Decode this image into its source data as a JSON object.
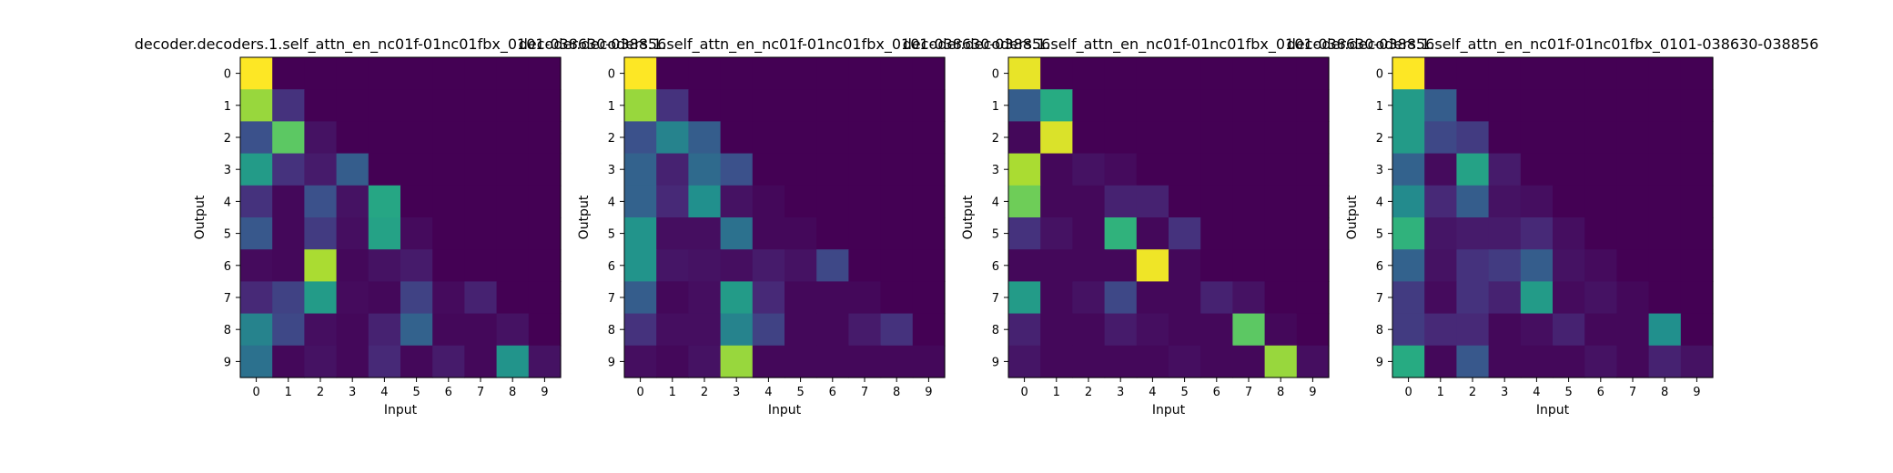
{
  "colormap": "viridis",
  "chart_data": [
    {
      "type": "heatmap",
      "title": "decoder.decoders.1.self_attn_en_nc01f-01nc01fbx_0101-038630-038856",
      "xlabel": "Input",
      "ylabel": "Output",
      "x_ticks": [
        "0",
        "1",
        "2",
        "3",
        "4",
        "5",
        "6",
        "7",
        "8",
        "9"
      ],
      "y_ticks": [
        "0",
        "1",
        "2",
        "3",
        "4",
        "5",
        "6",
        "7",
        "8",
        "9"
      ],
      "values": [
        [
          1.0,
          0,
          0,
          0,
          0,
          0,
          0,
          0,
          0,
          0
        ],
        [
          0.85,
          0.15,
          0,
          0,
          0,
          0,
          0,
          0,
          0,
          0
        ],
        [
          0.25,
          0.75,
          0.05,
          0,
          0,
          0,
          0,
          0,
          0,
          0
        ],
        [
          0.55,
          0.15,
          0.08,
          0.3,
          0,
          0,
          0,
          0,
          0,
          0
        ],
        [
          0.15,
          0.02,
          0.25,
          0.05,
          0.6,
          0,
          0,
          0,
          0,
          0
        ],
        [
          0.28,
          0.02,
          0.18,
          0.04,
          0.58,
          0.03,
          0,
          0,
          0,
          0
        ],
        [
          0.03,
          0.02,
          0.88,
          0.02,
          0.05,
          0.08,
          0,
          0,
          0,
          0
        ],
        [
          0.12,
          0.2,
          0.55,
          0.03,
          0.02,
          0.2,
          0.03,
          0.1,
          0,
          0
        ],
        [
          0.45,
          0.22,
          0.04,
          0.02,
          0.1,
          0.32,
          0.02,
          0.02,
          0.05,
          0
        ],
        [
          0.38,
          0.02,
          0.05,
          0.02,
          0.12,
          0.02,
          0.08,
          0.02,
          0.52,
          0.05
        ]
      ]
    },
    {
      "type": "heatmap",
      "title": "decoder.decoders.1.self_attn_en_nc01f-01nc01fbx_0101-038630-038856",
      "xlabel": "Input",
      "ylabel": "Output",
      "x_ticks": [
        "0",
        "1",
        "2",
        "3",
        "4",
        "5",
        "6",
        "7",
        "8",
        "9"
      ],
      "y_ticks": [
        "0",
        "1",
        "2",
        "3",
        "4",
        "5",
        "6",
        "7",
        "8",
        "9"
      ],
      "values": [
        [
          1.0,
          0,
          0,
          0,
          0,
          0,
          0,
          0,
          0,
          0
        ],
        [
          0.85,
          0.15,
          0,
          0,
          0,
          0,
          0,
          0,
          0,
          0
        ],
        [
          0.25,
          0.45,
          0.3,
          0,
          0,
          0,
          0,
          0,
          0,
          0
        ],
        [
          0.32,
          0.1,
          0.35,
          0.25,
          0,
          0,
          0,
          0,
          0,
          0
        ],
        [
          0.32,
          0.12,
          0.5,
          0.05,
          0.02,
          0,
          0,
          0,
          0,
          0
        ],
        [
          0.52,
          0.04,
          0.04,
          0.38,
          0.02,
          0.02,
          0,
          0,
          0,
          0
        ],
        [
          0.52,
          0.06,
          0.05,
          0.04,
          0.08,
          0.05,
          0.22,
          0,
          0,
          0
        ],
        [
          0.3,
          0.02,
          0.04,
          0.55,
          0.12,
          0.02,
          0.02,
          0.02,
          0,
          0
        ],
        [
          0.15,
          0.04,
          0.04,
          0.45,
          0.2,
          0.02,
          0.02,
          0.08,
          0.15,
          0
        ],
        [
          0.04,
          0.02,
          0.05,
          0.85,
          0.02,
          0.02,
          0.02,
          0.02,
          0.02,
          0.02
        ]
      ]
    },
    {
      "type": "heatmap",
      "title": "decoder.decoders.1.self_attn_en_nc01f-01nc01fbx_0101-038630-038856",
      "xlabel": "Input",
      "ylabel": "Output",
      "x_ticks": [
        "0",
        "1",
        "2",
        "3",
        "4",
        "5",
        "6",
        "7",
        "8",
        "9"
      ],
      "y_ticks": [
        "0",
        "1",
        "2",
        "3",
        "4",
        "5",
        "6",
        "7",
        "8",
        "9"
      ],
      "values": [
        [
          0.97,
          0,
          0,
          0,
          0,
          0,
          0,
          0,
          0,
          0
        ],
        [
          0.3,
          0.62,
          0,
          0,
          0,
          0,
          0,
          0,
          0,
          0
        ],
        [
          0.02,
          0.95,
          0,
          0,
          0,
          0,
          0,
          0,
          0,
          0
        ],
        [
          0.88,
          0.02,
          0.05,
          0.03,
          0,
          0,
          0,
          0,
          0,
          0
        ],
        [
          0.78,
          0.02,
          0.02,
          0.1,
          0.1,
          0,
          0,
          0,
          0,
          0
        ],
        [
          0.15,
          0.05,
          0.02,
          0.65,
          0.02,
          0.15,
          0,
          0,
          0,
          0
        ],
        [
          0.02,
          0.02,
          0.02,
          0.02,
          0.98,
          0.02,
          0,
          0,
          0,
          0
        ],
        [
          0.55,
          0.02,
          0.05,
          0.22,
          0.02,
          0.02,
          0.1,
          0.05,
          0,
          0
        ],
        [
          0.1,
          0.02,
          0.02,
          0.08,
          0.04,
          0.02,
          0.02,
          0.75,
          0.02,
          0
        ],
        [
          0.06,
          0.02,
          0.02,
          0.02,
          0.02,
          0.04,
          0.02,
          0.02,
          0.85,
          0.04
        ]
      ]
    },
    {
      "type": "heatmap",
      "title": "decoder.decoders.1.self_attn_en_nc01f-01nc01fbx_0101-038630-038856",
      "xlabel": "Input",
      "ylabel": "Output",
      "x_ticks": [
        "0",
        "1",
        "2",
        "3",
        "4",
        "5",
        "6",
        "7",
        "8",
        "9"
      ],
      "y_ticks": [
        "0",
        "1",
        "2",
        "3",
        "4",
        "5",
        "6",
        "7",
        "8",
        "9"
      ],
      "values": [
        [
          1.0,
          0,
          0,
          0,
          0,
          0,
          0,
          0,
          0,
          0
        ],
        [
          0.55,
          0.3,
          0,
          0,
          0,
          0,
          0,
          0,
          0,
          0
        ],
        [
          0.55,
          0.22,
          0.18,
          0,
          0,
          0,
          0,
          0,
          0,
          0
        ],
        [
          0.32,
          0.03,
          0.58,
          0.08,
          0,
          0,
          0,
          0,
          0,
          0
        ],
        [
          0.48,
          0.12,
          0.3,
          0.05,
          0.04,
          0,
          0,
          0,
          0,
          0
        ],
        [
          0.65,
          0.06,
          0.08,
          0.08,
          0.12,
          0.04,
          0,
          0,
          0,
          0
        ],
        [
          0.32,
          0.05,
          0.15,
          0.18,
          0.3,
          0.05,
          0.03,
          0,
          0,
          0
        ],
        [
          0.18,
          0.03,
          0.15,
          0.1,
          0.55,
          0.03,
          0.05,
          0.02,
          0,
          0
        ],
        [
          0.18,
          0.12,
          0.12,
          0.02,
          0.04,
          0.1,
          0.02,
          0.02,
          0.5,
          0
        ],
        [
          0.62,
          0.02,
          0.28,
          0.02,
          0.02,
          0.02,
          0.05,
          0.02,
          0.1,
          0.05
        ]
      ]
    }
  ]
}
